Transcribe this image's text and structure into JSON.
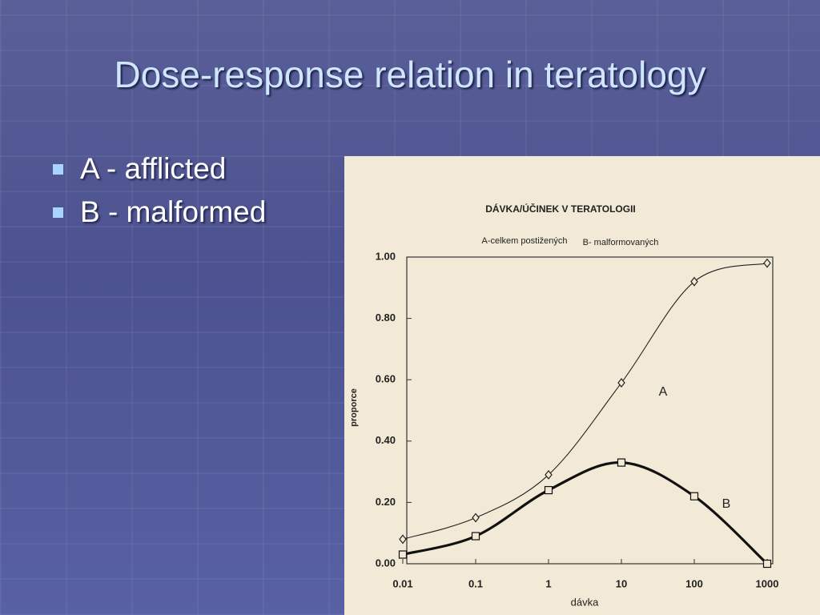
{
  "slide": {
    "title": "Dose-response relation in teratology",
    "bullets": [
      "A - afflicted",
      "B - malformed"
    ]
  },
  "chart_data": {
    "type": "line",
    "title": "DÁVKA/ÚČINEK V TERATOLOGII",
    "subtitle": [
      "A-celkem postižených",
      "B- malformovaných"
    ],
    "xlabel": "dávka",
    "ylabel": "proporce",
    "x": [
      0.01,
      0.1,
      1,
      10,
      100,
      1000
    ],
    "xlog": true,
    "xlim": [
      0.01,
      1000
    ],
    "xticks": [
      0.01,
      0.1,
      1,
      10,
      100,
      1000
    ],
    "ylim": [
      0,
      1
    ],
    "yticks": [
      {
        "value": 0,
        "label": "0.00"
      },
      {
        "value": 0.2,
        "label": "0.20"
      },
      {
        "value": 0.4,
        "label": "0.40"
      },
      {
        "value": 0.6,
        "label": "0.60"
      },
      {
        "value": 0.8,
        "label": "0.80"
      },
      {
        "value": 1,
        "label": "1.00"
      }
    ],
    "series": [
      {
        "name": "A",
        "color": "#222222",
        "marker": "diamond",
        "values": [
          0.08,
          0.15,
          0.29,
          0.59,
          0.92,
          0.98
        ]
      },
      {
        "name": "B",
        "color": "#111111",
        "marker": "square",
        "values": [
          0.03,
          0.09,
          0.24,
          0.33,
          0.22,
          0
        ]
      }
    ]
  }
}
